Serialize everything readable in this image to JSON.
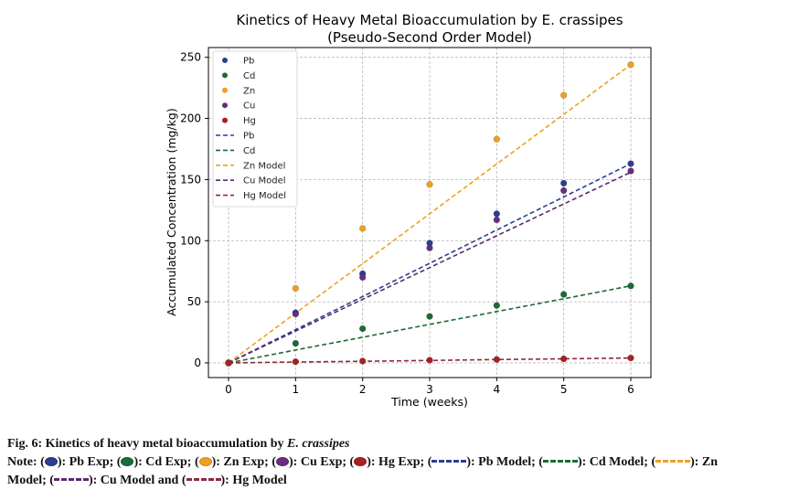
{
  "chart_data": {
    "type": "scatter",
    "title": "Kinetics of Heavy Metal Bioaccumulation by E. crassipes",
    "subtitle": "(Pseudo-Second Order Model)",
    "xlabel": "Time (weeks)",
    "ylabel": "Accumulated Concentration (mg/kg)",
    "xlim": [
      -0.3,
      6.3
    ],
    "ylim": [
      -12,
      258
    ],
    "xticks": [
      0,
      1,
      2,
      3,
      4,
      5,
      6
    ],
    "yticks": [
      0,
      50,
      100,
      150,
      200,
      250
    ],
    "grid": true,
    "legend_position": "upper-left",
    "x": [
      0,
      1,
      2,
      3,
      4,
      5,
      6
    ],
    "series": [
      {
        "name": "Pb Exp",
        "kind": "points",
        "color": "#2c3e91",
        "values": [
          0,
          41,
          73,
          98,
          122,
          147,
          163
        ]
      },
      {
        "name": "Cd Exp",
        "kind": "points",
        "color": "#1a6b34",
        "values": [
          0,
          16,
          28,
          38,
          47,
          56,
          63
        ]
      },
      {
        "name": "Zn Exp",
        "kind": "points",
        "color": "#f0a020",
        "values": [
          0,
          61,
          110,
          146,
          183,
          219,
          244
        ]
      },
      {
        "name": "Cu Exp",
        "kind": "points",
        "color": "#6a2d7e",
        "values": [
          0,
          40,
          70,
          94,
          117,
          141,
          157
        ]
      },
      {
        "name": "Hg Exp",
        "kind": "points",
        "color": "#a82222",
        "values": [
          0,
          1,
          1.5,
          2.2,
          2.8,
          3.3,
          4
        ]
      },
      {
        "name": "Pb Model",
        "kind": "line",
        "color": "#2c3e91",
        "values": [
          0,
          27.2,
          54.3,
          81.5,
          108.7,
          135.8,
          163
        ]
      },
      {
        "name": "Cd Model",
        "kind": "line",
        "color": "#1a6b34",
        "values": [
          0,
          10.5,
          21,
          31.5,
          42,
          52.5,
          63
        ]
      },
      {
        "name": "Zn Model",
        "kind": "line",
        "color": "#f0a020",
        "values": [
          0,
          40.7,
          81.3,
          122,
          162.7,
          203.3,
          244
        ]
      },
      {
        "name": "Cu Model",
        "kind": "line",
        "color": "#5a2a6e",
        "values": [
          0,
          26,
          52,
          78,
          104,
          130,
          156
        ]
      },
      {
        "name": "Hg Model",
        "kind": "line",
        "color": "#8e2a3c",
        "values": [
          0,
          0.7,
          1.3,
          2,
          2.7,
          3.3,
          4
        ]
      }
    ]
  },
  "legend_labels": [
    "Pb",
    "Cd",
    "Zn",
    "Cu",
    "Hg",
    "Pb",
    "Cd",
    "Zn Model",
    "Cu Model",
    "Hg Model"
  ],
  "caption": {
    "title_prefix": "Fig. 6: Kinetics of heavy metal bioaccumulation by ",
    "title_italic": "E. crassipes",
    "note_prefix": "Note: (",
    "items": [
      {
        "label": "): Pb Exp; (",
        "color": "#2c3e91",
        "kind": "dot"
      },
      {
        "label": "): Cd Exp; (",
        "color": "#1a6b34",
        "kind": "dot"
      },
      {
        "label": "): Zn Exp; (",
        "color": "#f0a020",
        "kind": "dot"
      },
      {
        "label": "): Cu Exp; (",
        "color": "#6a2d7e",
        "kind": "dot"
      },
      {
        "label": "): Hg Exp; (",
        "color": "#a82222",
        "kind": "dot"
      },
      {
        "label": "): Pb Model; (",
        "color": "#2c3e91",
        "kind": "dash"
      },
      {
        "label": "): Cd Model; (",
        "color": "#1a6b34",
        "kind": "dash"
      },
      {
        "label": "): Zn",
        "color": "#f0a020",
        "kind": "dash"
      }
    ],
    "line2_prefix": "Model; (",
    "items2": [
      {
        "label": "): Cu Model and (",
        "color": "#5a2a6e",
        "kind": "dash"
      },
      {
        "label": "): Hg Model",
        "color": "#8e2a3c",
        "kind": "dash"
      }
    ]
  }
}
